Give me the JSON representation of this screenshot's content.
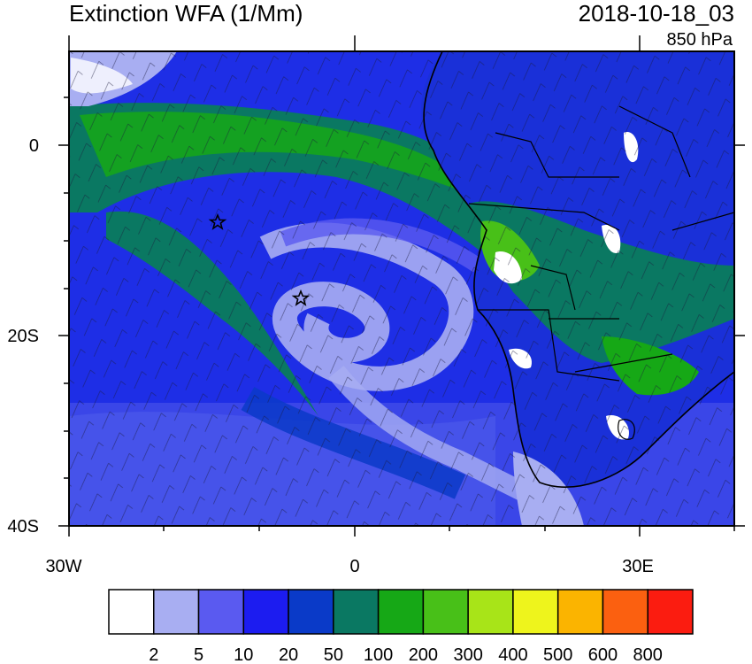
{
  "header": {
    "title": "Extinction WFA (1/Mm)",
    "datetime": "2018-10-18_03",
    "level": "850 hPa"
  },
  "axes": {
    "lat_ticks": [
      "0",
      "20S",
      "40S"
    ],
    "lon_ticks": [
      "30W",
      "0",
      "30E"
    ]
  },
  "colorbar": {
    "labels": [
      "2",
      "5",
      "10",
      "20",
      "50",
      "100",
      "200",
      "300",
      "400",
      "500",
      "600",
      "800"
    ],
    "colors": [
      "#ffffff",
      "#a8aef2",
      "#5a5af0",
      "#1c1cf0",
      "#0a3ac8",
      "#0a7862",
      "#16a816",
      "#48c018",
      "#a8e418",
      "#eef41c",
      "#fbb400",
      "#fb6010",
      "#fb1c10"
    ]
  },
  "markers": [
    {
      "name": "site-marker-1",
      "lon": "14W",
      "lat": "8S"
    },
    {
      "name": "site-marker-2",
      "lon": "6W",
      "lat": "16S"
    }
  ]
}
